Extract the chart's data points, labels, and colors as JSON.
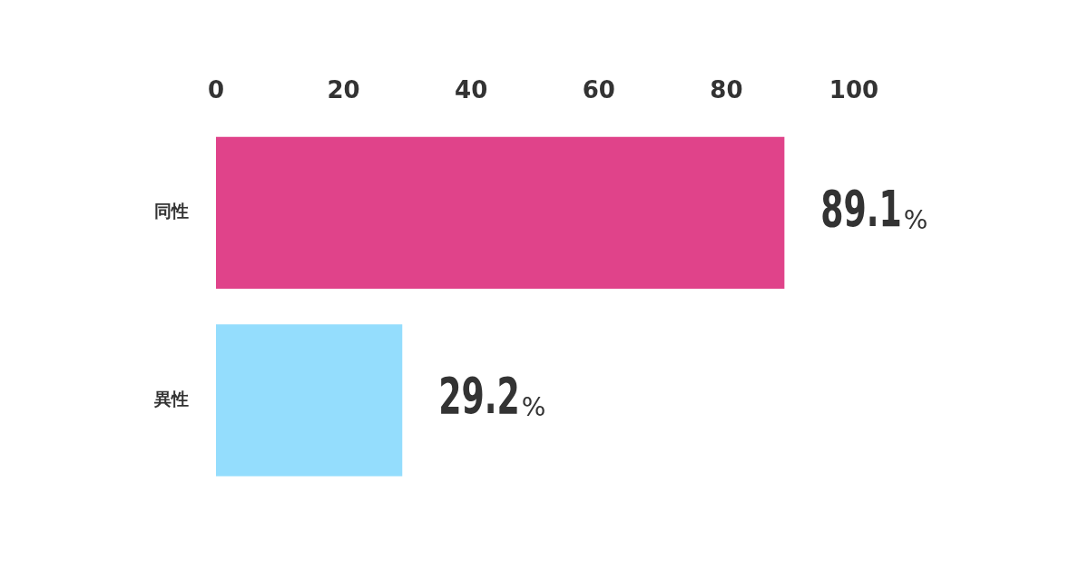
{
  "chart_data": {
    "type": "bar",
    "orientation": "horizontal",
    "categories": [
      "同性",
      "異性"
    ],
    "values": [
      89.1,
      29.2
    ],
    "colors": [
      "#e0438a",
      "#94ddfd"
    ],
    "value_labels": [
      "89.1%",
      "29.2%"
    ],
    "xlim": [
      0,
      100
    ],
    "xticks": [
      0,
      20,
      40,
      60,
      80,
      100
    ],
    "grid": false,
    "legend": false
  }
}
